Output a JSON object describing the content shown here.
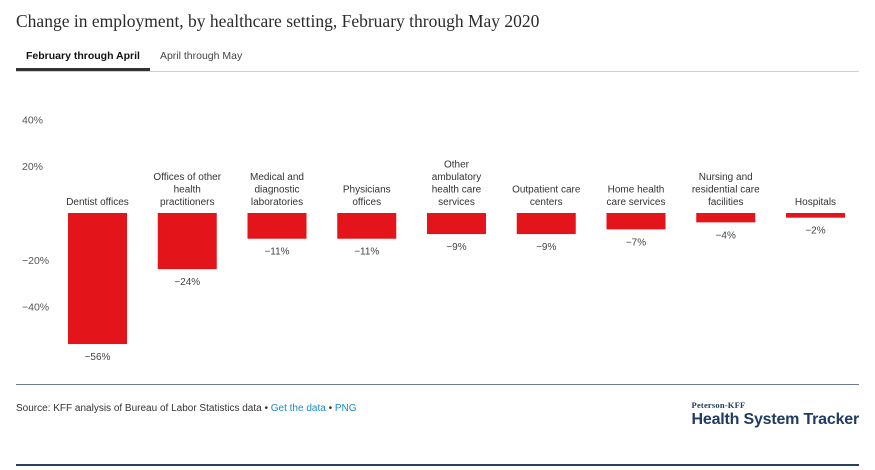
{
  "title": "Change in employment, by healthcare setting, February through May 2020",
  "tabs": [
    {
      "label": "February through April",
      "active": true
    },
    {
      "label": "April through May",
      "active": false
    }
  ],
  "footer": {
    "source_prefix": "Source: KFF analysis of Bureau of Labor Statistics data",
    "sep1": " • ",
    "get_data_link": "Get the data",
    "sep2": " • ",
    "png_link": "PNG"
  },
  "brand": {
    "line1": "Peterson-KFF",
    "line2": "Health System Tracker",
    "color": "#1f3b63"
  },
  "chart_data": {
    "type": "bar",
    "title": "Change in employment, by healthcare setting, February through May 2020",
    "categories": [
      "Dentist offices",
      "Offices of other health practitioners",
      "Medical and diagnostic laboratories",
      "Physicians offices",
      "Other ambulatory health care services",
      "Outpatient care centers",
      "Home health care services",
      "Nursing and residential care facilities",
      "Hospitals"
    ],
    "category_lines": [
      [
        "Dentist offices"
      ],
      [
        "Offices of other",
        "health",
        "practitioners"
      ],
      [
        "Medical and",
        "diagnostic",
        "laboratories"
      ],
      [
        "Physicians",
        "offices"
      ],
      [
        "Other",
        "ambulatory",
        "health care",
        "services"
      ],
      [
        "Outpatient care",
        "centers"
      ],
      [
        "Home health",
        "care services"
      ],
      [
        "Nursing and",
        "residential care",
        "facilities"
      ],
      [
        "Hospitals"
      ]
    ],
    "values": [
      -56,
      -24,
      -11,
      -11,
      -9,
      -9,
      -7,
      -4,
      -2
    ],
    "value_labels": [
      "−56%",
      "−24%",
      "−11%",
      "−11%",
      "−9%",
      "−9%",
      "−7%",
      "−4%",
      "−2%"
    ],
    "y_ticks": [
      40,
      20,
      -20,
      -40
    ],
    "y_tick_labels": [
      "40%",
      "20%",
      "−20%",
      "−40%"
    ],
    "ylim": [
      -60,
      40
    ],
    "bar_color": "#e3151a",
    "grid": false,
    "legend": "none"
  }
}
